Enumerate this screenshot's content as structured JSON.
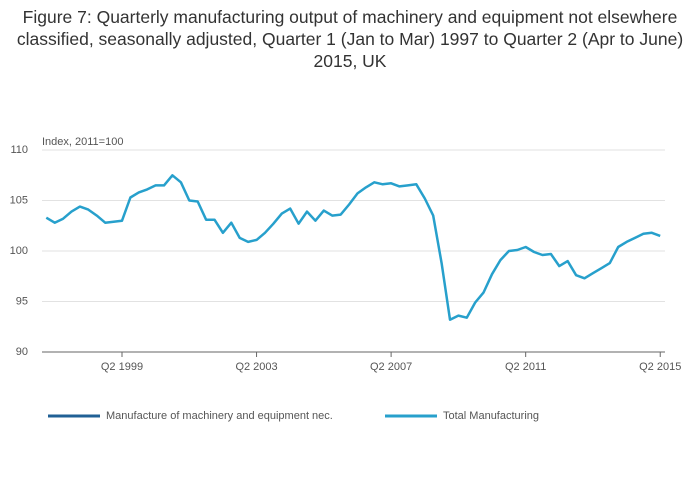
{
  "chart_data": {
    "type": "line",
    "title": "Figure 7: Quarterly manufacturing output of machinery and equipment not elsewhere classified, seasonally adjusted, Quarter 1 (Jan to Mar) 1997 to Quarter 2 (Apr to June) 2015, UK",
    "y_label": "Index, 2011=100",
    "categories": [
      null,
      null,
      null,
      null,
      null,
      null,
      null,
      null,
      null,
      "Q2 1999",
      null,
      null,
      null,
      null,
      null,
      null,
      null,
      null,
      null,
      null,
      null,
      null,
      null,
      null,
      null,
      "Q2 2003",
      null,
      null,
      null,
      null,
      null,
      null,
      null,
      null,
      null,
      null,
      null,
      null,
      null,
      null,
      null,
      "Q2 2007",
      null,
      null,
      null,
      null,
      null,
      null,
      null,
      null,
      null,
      null,
      null,
      null,
      null,
      null,
      null,
      "Q2 2011",
      null,
      null,
      null,
      null,
      null,
      null,
      null,
      null,
      null,
      null,
      null,
      null,
      null,
      null,
      null,
      "Q2 2015"
    ],
    "series": [
      {
        "name": "Manufacture of machinery and equipment nec.",
        "color": "#206095",
        "values": [
          null,
          null,
          null,
          null,
          null,
          null,
          null,
          null,
          null,
          null,
          null,
          null,
          null,
          null,
          null,
          null,
          null,
          null,
          null,
          null,
          null,
          null,
          null,
          null,
          null,
          null,
          null,
          null,
          null,
          null,
          null,
          null,
          null,
          null,
          null,
          null,
          null,
          null,
          null,
          null,
          null,
          null,
          null,
          null,
          null,
          null,
          null,
          null,
          null,
          null,
          null,
          null,
          null,
          null,
          null,
          null,
          null,
          null,
          null,
          null,
          null,
          null,
          null,
          null,
          null,
          null,
          null,
          null,
          null,
          null,
          null,
          null,
          null,
          null
        ]
      },
      {
        "name": "Total Manufacturing",
        "color": "#27a0cc",
        "values": [
          103.3,
          102.8,
          103.2,
          103.9,
          104.4,
          104.1,
          103.5,
          102.8,
          102.9,
          103.0,
          105.3,
          105.8,
          106.1,
          106.5,
          106.5,
          107.5,
          106.8,
          105.0,
          104.9,
          103.1,
          103.1,
          101.8,
          102.8,
          101.3,
          100.9,
          101.1,
          101.8,
          102.7,
          103.7,
          104.2,
          102.7,
          103.9,
          103.0,
          104.0,
          103.5,
          103.6,
          104.6,
          105.7,
          106.3,
          106.8,
          106.6,
          106.7,
          106.4,
          106.5,
          106.6,
          105.2,
          103.5,
          98.8,
          93.2,
          93.6,
          93.4,
          94.9,
          95.9,
          97.7,
          99.1,
          100.0,
          100.1,
          100.4,
          99.9,
          99.6,
          99.7,
          98.5,
          99.0,
          97.6,
          97.3,
          97.8,
          98.3,
          98.8,
          100.4,
          100.9,
          101.3,
          101.7,
          101.8,
          101.5
        ]
      }
    ],
    "ylim": [
      90,
      110
    ],
    "yticks": [
      90,
      95,
      100,
      105,
      110
    ],
    "grid": true,
    "legend": "bottom"
  }
}
